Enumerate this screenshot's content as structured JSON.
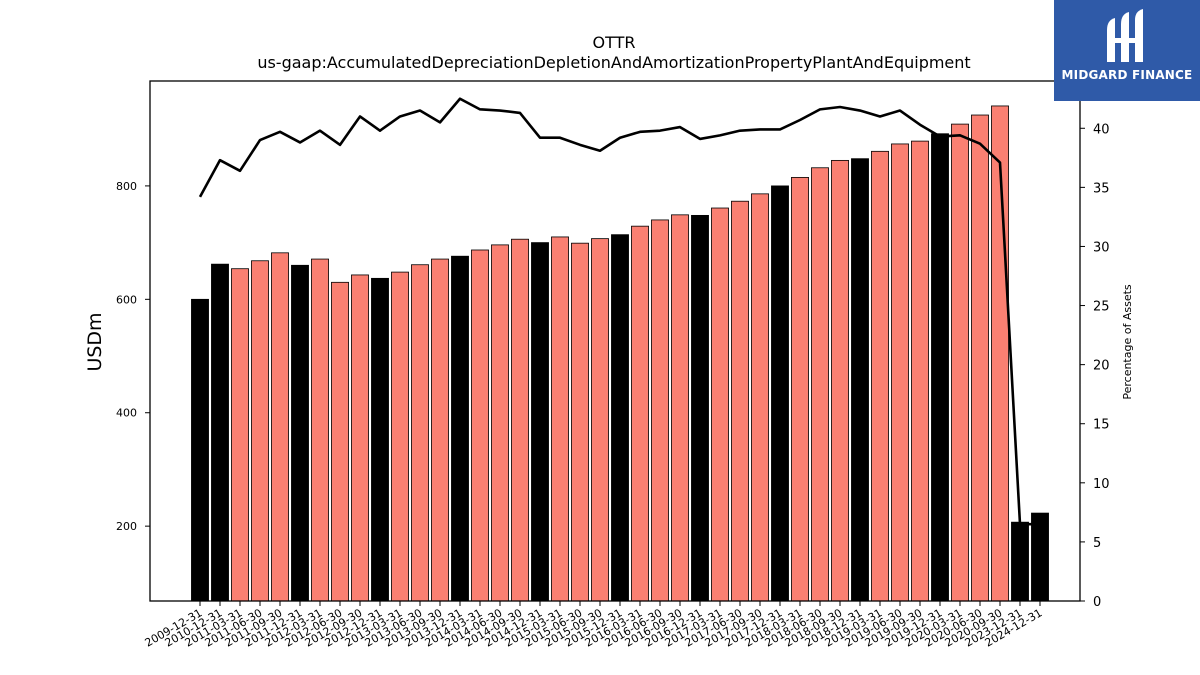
{
  "logo": {
    "text": "MIDGARD FINANCE",
    "color": "#2f5aa8"
  },
  "chart_data": {
    "type": "bar",
    "title": "OTTR",
    "subtitle": "us-gaap:AccumulatedDepreciationDepletionAndAmortizationPropertyPlantAndEquipment",
    "ylabel": "USDm",
    "y2label": "Percentage of Assets",
    "ylim": [
      68,
      985
    ],
    "y2lim": [
      0,
      44
    ],
    "yticks": [
      200,
      400,
      600,
      800
    ],
    "y2ticks": [
      0,
      5,
      10,
      15,
      20,
      25,
      30,
      35,
      40
    ],
    "categories": [
      "2009-12-31",
      "2010-12-31",
      "2011-03-31",
      "2011-06-30",
      "2011-09-30",
      "2011-12-31",
      "2012-03-31",
      "2012-06-30",
      "2012-09-30",
      "2012-12-31",
      "2013-03-31",
      "2013-06-30",
      "2013-09-30",
      "2013-12-31",
      "2014-03-31",
      "2014-06-30",
      "2014-09-30",
      "2014-12-31",
      "2015-03-31",
      "2015-06-30",
      "2015-09-30",
      "2015-12-31",
      "2016-03-31",
      "2016-06-30",
      "2016-09-30",
      "2016-12-31",
      "2017-03-31",
      "2017-06-30",
      "2017-09-30",
      "2017-12-31",
      "2018-03-31",
      "2018-06-30",
      "2018-09-30",
      "2018-12-31",
      "2019-03-31",
      "2019-06-30",
      "2019-09-30",
      "2019-12-31",
      "2020-03-31",
      "2020-06-30",
      "2020-09-30",
      "2023-12-31",
      "2024-12-31"
    ],
    "series": [
      {
        "values": [
          600,
          662,
          654,
          668,
          682,
          660,
          671,
          630,
          643,
          637,
          648,
          661,
          671,
          676,
          687,
          696,
          706,
          700,
          710,
          699,
          707,
          714,
          729,
          740,
          749,
          748,
          761,
          773,
          786,
          800,
          815,
          832,
          845,
          848,
          861,
          874,
          879,
          892,
          909,
          925,
          941,
          207,
          223
        ],
        "annual": [
          true,
          true,
          false,
          false,
          false,
          true,
          false,
          false,
          false,
          true,
          false,
          false,
          false,
          true,
          false,
          false,
          false,
          true,
          false,
          false,
          false,
          true,
          false,
          false,
          false,
          true,
          false,
          false,
          false,
          true,
          false,
          false,
          false,
          true,
          false,
          false,
          false,
          true,
          false,
          false,
          false,
          true,
          true
        ]
      },
      {
        "type": "line",
        "values": [
          34.2,
          37.3,
          36.4,
          39.0,
          39.7,
          38.8,
          39.8,
          38.6,
          41.0,
          39.8,
          41.0,
          41.5,
          40.5,
          42.5,
          41.6,
          41.5,
          41.3,
          39.2,
          39.2,
          38.6,
          38.1,
          39.2,
          39.7,
          39.8,
          40.1,
          39.1,
          39.4,
          39.8,
          39.9,
          39.9,
          40.7,
          41.6,
          41.8,
          41.5,
          41.0,
          41.5,
          40.3,
          39.3,
          39.4,
          38.7,
          37.1,
          6.5,
          6.5
        ]
      }
    ],
    "colors": {
      "annual": "#000000",
      "quarter": "#fa8072",
      "line": "#000000"
    }
  }
}
